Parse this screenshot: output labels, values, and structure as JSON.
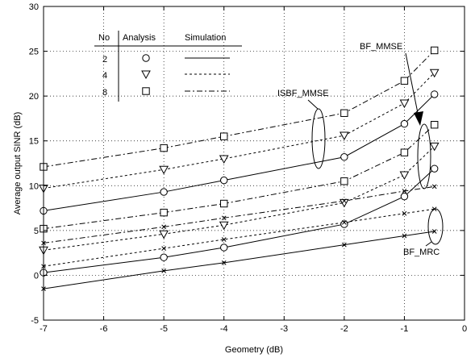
{
  "chart_data": {
    "type": "line",
    "xlabel": "Geometry (dB)",
    "ylabel": "Average output SINR (dB)",
    "xlim": [
      -7,
      0
    ],
    "ylim": [
      -5,
      30
    ],
    "x_ticks": [
      -7,
      -6,
      -5,
      -4,
      -3,
      -2,
      -1,
      0
    ],
    "y_ticks": [
      -5,
      0,
      5,
      10,
      15,
      20,
      25,
      30
    ],
    "grid": true,
    "legend": {
      "placement": "top-left",
      "headers": [
        "No",
        "Analysis",
        "Simulation"
      ],
      "rows": [
        {
          "no": "2",
          "marker": "circle",
          "dash": "solid"
        },
        {
          "no": "4",
          "marker": "triangle-down",
          "dash": "dashed"
        },
        {
          "no": "8",
          "marker": "square",
          "dash": "dashdot"
        }
      ]
    },
    "annotations": [
      "BF_MMSE",
      "ISBF_MMSE",
      "BF_MRC"
    ],
    "x": [
      -7,
      -5,
      -4,
      -2,
      -1,
      -0.5
    ],
    "series": [
      {
        "group": "BF_MMSE",
        "no": "2",
        "dash": "solid",
        "marker": "circle",
        "values": [
          7.2,
          9.3,
          10.6,
          13.2,
          16.9,
          20.2
        ]
      },
      {
        "group": "BF_MMSE",
        "no": "4",
        "dash": "dashed",
        "marker": "triangle-down",
        "values": [
          9.7,
          11.8,
          13.0,
          15.6,
          19.2,
          22.6
        ]
      },
      {
        "group": "BF_MMSE",
        "no": "8",
        "dash": "dashdot",
        "marker": "square",
        "values": [
          12.1,
          14.2,
          15.5,
          18.1,
          21.7,
          25.1
        ]
      },
      {
        "group": "ISBF_MMSE",
        "no": "2",
        "dash": "solid",
        "marker": "circle",
        "values": [
          0.3,
          2.0,
          3.1,
          5.7,
          8.8,
          11.9
        ]
      },
      {
        "group": "ISBF_MMSE",
        "no": "4",
        "dash": "dashed",
        "marker": "triangle-down",
        "values": [
          2.8,
          4.6,
          5.6,
          8.1,
          11.2,
          14.4
        ]
      },
      {
        "group": "ISBF_MMSE",
        "no": "8",
        "dash": "dashdot",
        "marker": "square",
        "values": [
          5.2,
          7.0,
          8.0,
          10.5,
          13.7,
          16.8
        ]
      },
      {
        "group": "BF_MRC",
        "no": "2",
        "dash": "solid",
        "marker": "x",
        "values": [
          -1.5,
          0.5,
          1.4,
          3.4,
          4.4,
          4.9
        ]
      },
      {
        "group": "BF_MRC",
        "no": "4",
        "dash": "dashed",
        "marker": "x",
        "values": [
          1.0,
          3.0,
          4.0,
          5.9,
          6.9,
          7.4
        ]
      },
      {
        "group": "BF_MRC",
        "no": "8",
        "dash": "dashdot",
        "marker": "x",
        "values": [
          3.6,
          5.4,
          6.4,
          8.3,
          9.4,
          9.9
        ]
      }
    ]
  }
}
